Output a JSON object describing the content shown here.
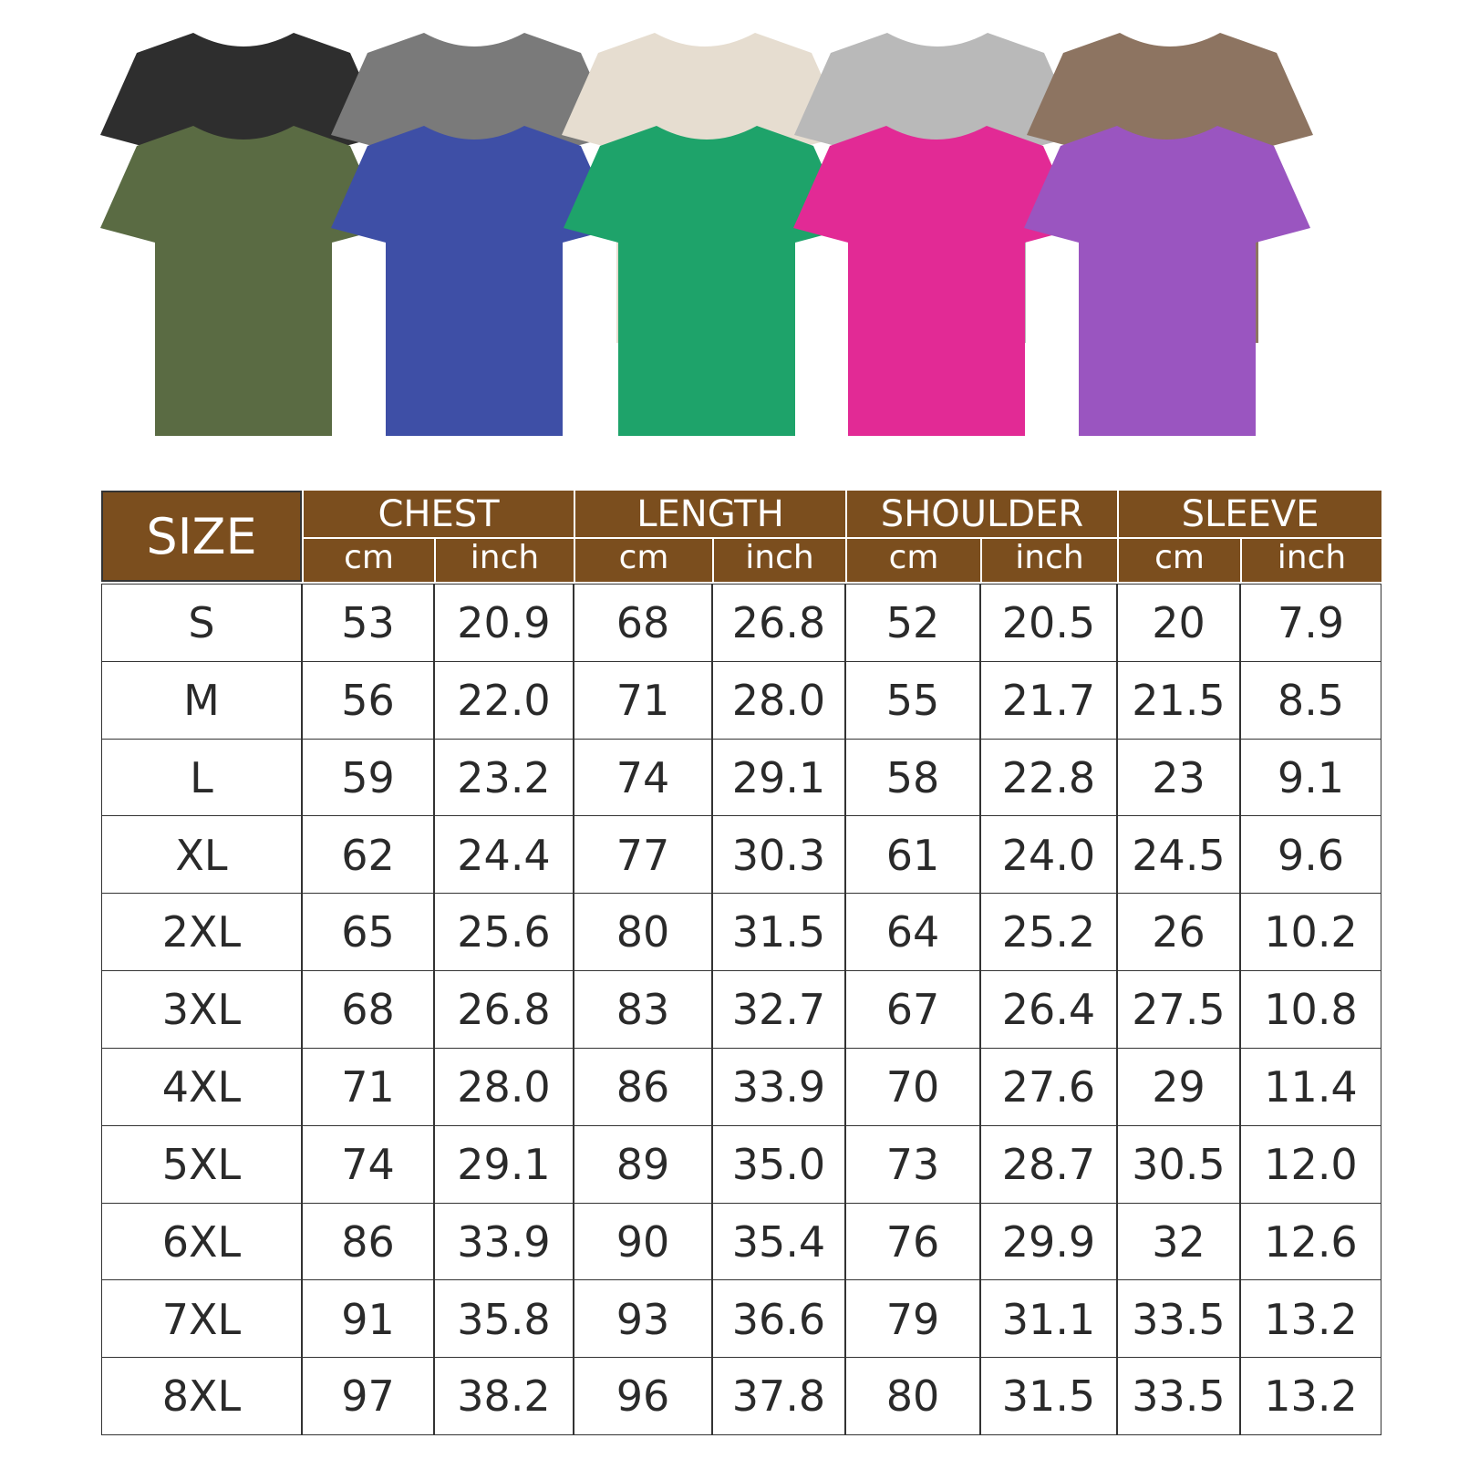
{
  "table": {
    "size_header": "SIZE",
    "groups": [
      {
        "label": "CHEST",
        "units": [
          "cm",
          "inch"
        ]
      },
      {
        "label": "LENGTH",
        "units": [
          "cm",
          "inch"
        ]
      },
      {
        "label": "SHOULDER",
        "units": [
          "cm",
          "inch"
        ]
      },
      {
        "label": "SLEEVE",
        "units": [
          "cm",
          "inch"
        ]
      }
    ],
    "rows": [
      [
        "S",
        "53",
        "20.9",
        "68",
        "26.8",
        "52",
        "20.5",
        "20",
        "7.9"
      ],
      [
        "M",
        "56",
        "22.0",
        "71",
        "28.0",
        "55",
        "21.7",
        "21.5",
        "8.5"
      ],
      [
        "L",
        "59",
        "23.2",
        "74",
        "29.1",
        "58",
        "22.8",
        "23",
        "9.1"
      ],
      [
        "XL",
        "62",
        "24.4",
        "77",
        "30.3",
        "61",
        "24.0",
        "24.5",
        "9.6"
      ],
      [
        "2XL",
        "65",
        "25.6",
        "80",
        "31.5",
        "64",
        "25.2",
        "26",
        "10.2"
      ],
      [
        "3XL",
        "68",
        "26.8",
        "83",
        "32.7",
        "67",
        "26.4",
        "27.5",
        "10.8"
      ],
      [
        "4XL",
        "71",
        "28.0",
        "86",
        "33.9",
        "70",
        "27.6",
        "29",
        "11.4"
      ],
      [
        "5XL",
        "74",
        "29.1",
        "89",
        "35.0",
        "73",
        "28.7",
        "30.5",
        "12.0"
      ],
      [
        "6XL",
        "86",
        "33.9",
        "90",
        "35.4",
        "76",
        "29.9",
        "32",
        "12.6"
      ],
      [
        "7XL",
        "91",
        "35.8",
        "93",
        "36.6",
        "79",
        "31.1",
        "33.5",
        "13.2"
      ],
      [
        "8XL",
        "97",
        "38.2",
        "96",
        "37.8",
        "80",
        "31.5",
        "33.5",
        "13.2"
      ]
    ]
  }
}
